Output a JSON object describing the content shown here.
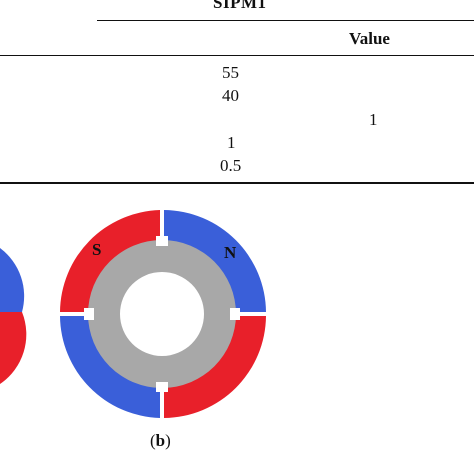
{
  "table": {
    "group_header": "SIPM1",
    "column_header": "Value",
    "rows": [
      {
        "value": "55"
      },
      {
        "value": "40"
      },
      {
        "value": "1"
      },
      {
        "value": "1"
      },
      {
        "value": "0.5"
      }
    ]
  },
  "figure": {
    "caption_open": "(",
    "caption_letter": "b",
    "caption_close": ")",
    "pole_south": "S",
    "pole_north": "N",
    "colors": {
      "north_pole": "#3a5fd9",
      "south_pole": "#e8202a",
      "stator": "#a8a8a8"
    }
  }
}
